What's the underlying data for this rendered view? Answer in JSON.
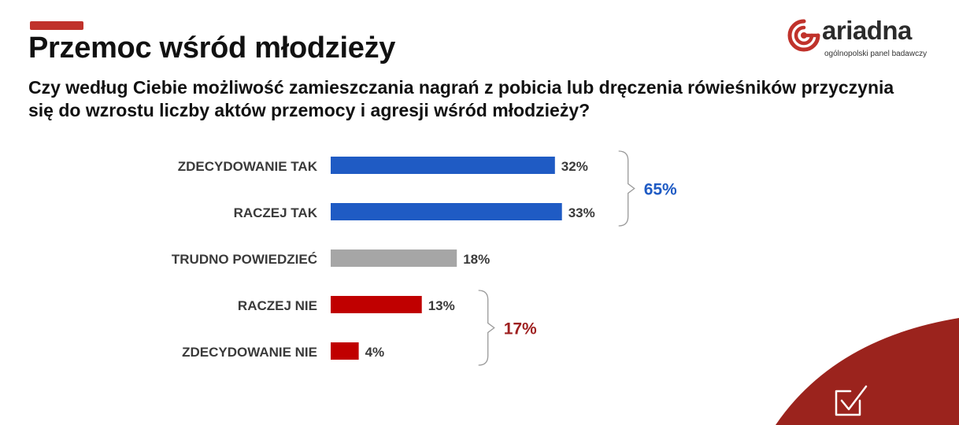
{
  "header": {
    "title": "Przemoc wśród młodzieży",
    "question": "Czy według Ciebie możliwość zamieszczania nagrań z pobicia lub dręczenia rówieśników przyczynia się do wzrostu liczby aktów przemocy i agresji wśród młodzieży?"
  },
  "logo": {
    "wordmark": "ariadna",
    "tagline": "ogólnopolski panel badawczy",
    "icon": "spiral-logo-icon"
  },
  "corner_icon": "checkbox-check-icon",
  "colors": {
    "accent": "#c0322b",
    "blue": "#1f5bc4",
    "gray": "#a6a6a6",
    "red": "#c00000",
    "group_blue_text": "#1f5bc4",
    "group_red_text": "#9e1f1f",
    "corner": "#9b231d"
  },
  "chart_data": {
    "type": "bar",
    "orientation": "horizontal",
    "categories": [
      "ZDECYDOWANIE TAK",
      "RACZEJ TAK",
      "TRUDNO POWIEDZIEĆ",
      "RACZEJ NIE",
      "ZDECYDOWANIE NIE"
    ],
    "values": [
      32,
      33,
      18,
      13,
      4
    ],
    "value_labels": [
      "32%",
      "33%",
      "18%",
      "13%",
      "4%"
    ],
    "bar_colors": [
      "#1f5bc4",
      "#1f5bc4",
      "#a6a6a6",
      "#c00000",
      "#c00000"
    ],
    "unit": "%",
    "groups": [
      {
        "label": "65%",
        "from": 0,
        "to": 1,
        "color": "#1f5bc4"
      },
      {
        "label": "17%",
        "from": 3,
        "to": 4,
        "color": "#9e1f1f"
      }
    ],
    "grid": false,
    "legend": "none"
  }
}
